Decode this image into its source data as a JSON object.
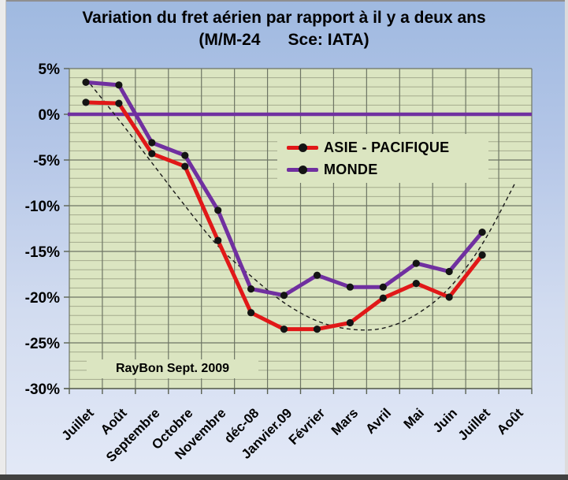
{
  "title": {
    "line1": "Variation du fret aérien  par rapport à il y a deux ans",
    "line2": "(M/M-24      Sce: IATA)"
  },
  "annotation": "RayBon Sept. 2009",
  "legend": {
    "items": [
      {
        "id": "asie-pacifique",
        "label": "ASIE - PACIFIQUE",
        "color": "#e11818"
      },
      {
        "id": "monde",
        "label": "MONDE",
        "color": "#7030a0"
      }
    ]
  },
  "colors": {
    "plot_bg": "#dbe5c1",
    "grid_minor": "#a4ab8e",
    "grid_major": "#6e7565",
    "tick": "#5a6152",
    "marker": "#141414",
    "trendline": "#1a1a1a",
    "zero_line": "#7030a0",
    "series_asie": "#e11818",
    "series_monde": "#7030a0"
  },
  "chart_data": {
    "type": "line",
    "title": "Variation du fret aérien par rapport à il y a deux ans",
    "subtitle": "(M/M-24  Sce: IATA)",
    "categories": [
      "Juillet",
      "Août",
      "Septembre",
      "Octobre",
      "Novembre",
      "déc-08",
      "Janvier.09",
      "Février",
      "Mars",
      "Avril",
      "Mai",
      "Juin",
      "Juillet",
      "Août"
    ],
    "series": [
      {
        "name": "ASIE - PACIFIQUE",
        "color": "#e11818",
        "values": [
          1.3,
          1.2,
          -4.3,
          -5.7,
          -13.8,
          -21.7,
          -23.5,
          -23.5,
          -22.8,
          -20.1,
          -18.5,
          -20.0,
          -15.4,
          null
        ]
      },
      {
        "name": "MONDE",
        "color": "#7030a0",
        "values": [
          3.5,
          3.2,
          -3.1,
          -4.5,
          -10.5,
          -19.1,
          -19.8,
          -17.6,
          -18.9,
          -18.9,
          -16.3,
          -17.2,
          -12.9,
          null
        ]
      }
    ],
    "trendline": {
      "style": "dashed",
      "color": "#1a1a1a",
      "values": [
        3.9,
        -0.6,
        -5.3,
        -10.0,
        -14.4,
        -17.7,
        -20.6,
        -22.6,
        -23.5,
        -23.4,
        -21.9,
        -19.0,
        -14.2,
        -7.5
      ]
    },
    "zero_line": {
      "value": 0,
      "color": "#7030a0",
      "width": 4.5
    },
    "ylim": [
      -30,
      5
    ],
    "ytick_step": 5,
    "minor_ytick_step": 1,
    "ytick_labels": [
      "5%",
      "0%",
      "-5%",
      "-10%",
      "-15%",
      "-20%",
      "-25%",
      "-30%"
    ],
    "grid": true,
    "legend_position": "inside-upper-middle"
  }
}
